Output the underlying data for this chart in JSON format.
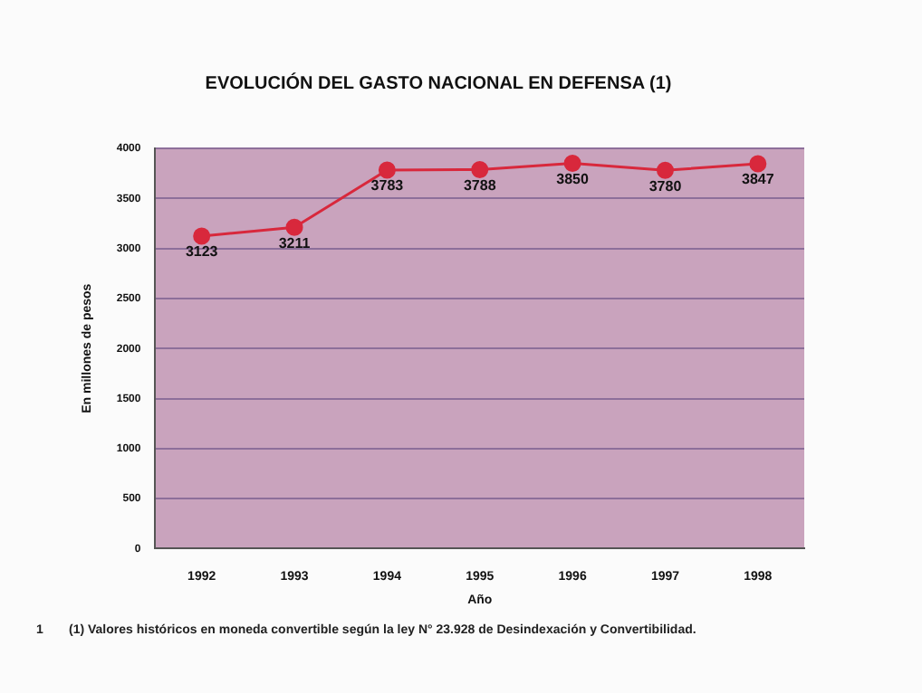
{
  "chart_data": {
    "type": "line",
    "title": "EVOLUCIÓN DEL GASTO NACIONAL EN DEFENSA (1)",
    "xlabel": "Año",
    "ylabel": "En millones de pesos",
    "categories": [
      "1992",
      "1993",
      "1994",
      "1995",
      "1996",
      "1997",
      "1998"
    ],
    "series": [
      {
        "color": "#d8283c",
        "values": [
          3123,
          3211,
          3783,
          3788,
          3850,
          3780,
          3847
        ]
      }
    ],
    "ylim": [
      0,
      4000
    ],
    "yticks": [
      0,
      500,
      1000,
      1500,
      2000,
      2500,
      3000,
      3500,
      4000
    ],
    "grid": "y",
    "legend": false,
    "marker": "circle",
    "data_labels": true,
    "annotations": [
      "1",
      "(1) Valores históricos en moneda convertible según la ley N° 23.928 de Desindexación y Convertibilidad."
    ]
  }
}
